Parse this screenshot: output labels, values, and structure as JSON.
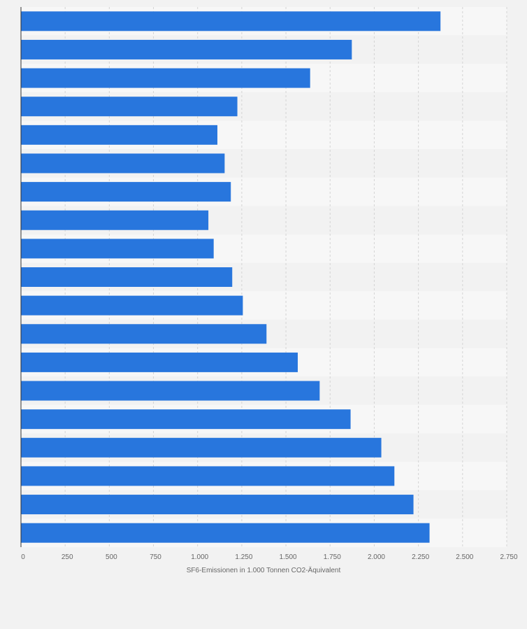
{
  "chart_data": {
    "type": "bar",
    "orientation": "horizontal",
    "categories": [
      "",
      "",
      "",
      "",
      "",
      "",
      "",
      "",
      "",
      "",
      "",
      "",
      "",
      "",
      "",
      "",
      "",
      "",
      ""
    ],
    "values": [
      2375,
      1873,
      1637,
      1225,
      1112,
      1153,
      1188,
      1061,
      1091,
      1196,
      1256,
      1390,
      1567,
      1691,
      1866,
      2040,
      2114,
      2222,
      2313
    ],
    "xlabel": "SF6-Emissionen in 1.000 Tonnen CO2-Äquivalent",
    "ylabel": "",
    "xlim": [
      0,
      2750
    ],
    "x_ticks": [
      {
        "value": 0,
        "label": "0"
      },
      {
        "value": 250,
        "label": "250"
      },
      {
        "value": 500,
        "label": "500"
      },
      {
        "value": 750,
        "label": "750"
      },
      {
        "value": 1000,
        "label": "1.000"
      },
      {
        "value": 1250,
        "label": "1.250"
      },
      {
        "value": 1500,
        "label": "1.500"
      },
      {
        "value": 1750,
        "label": "1.750"
      },
      {
        "value": 2000,
        "label": "2.000"
      },
      {
        "value": 2250,
        "label": "2.250"
      },
      {
        "value": 2500,
        "label": "2.500"
      },
      {
        "value": 2750,
        "label": "2.750"
      }
    ],
    "grid": true,
    "legend": "none",
    "colors": {
      "bar": "#2876dd",
      "band_light": "#f7f7f7",
      "band_dark": "#f2f2f2",
      "plot_bg": "#ffffff",
      "gridline": "#d4d4d4",
      "axis": "#333333"
    }
  }
}
